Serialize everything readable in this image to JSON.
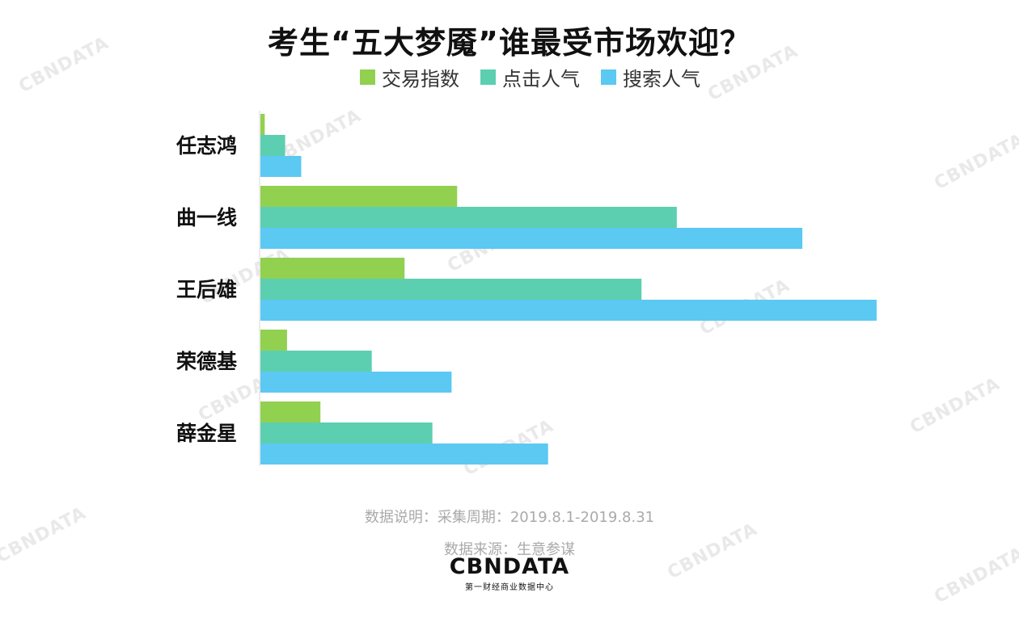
{
  "chart_data": {
    "type": "bar",
    "orientation": "horizontal",
    "title": "考生“五大梦魇”谁最受市场欢迎？",
    "categories": [
      "任志鸿",
      "曲一线",
      "王后雄",
      "荣德基",
      "薛金星"
    ],
    "series": [
      {
        "name": "交易指数",
        "color": "#92d050",
        "values": [
          0.7,
          31.8,
          23.3,
          4.3,
          9.7
        ]
      },
      {
        "name": "点击人气",
        "color": "#5ccfb0",
        "values": [
          4.0,
          67.3,
          61.6,
          18.0,
          27.8
        ]
      },
      {
        "name": "搜索人气",
        "color": "#5bc9f2",
        "values": [
          6.6,
          87.6,
          99.6,
          30.9,
          46.5
        ]
      }
    ],
    "xlim": [
      0,
      100
    ],
    "grid": false,
    "legend_position": "top"
  },
  "footer": {
    "note": "数据说明：采集周期：2019.8.1-2019.8.31",
    "source": "数据来源：生意参谋"
  },
  "logo": {
    "main": "CBNDATA",
    "sub": "第一财经商业数据中心"
  }
}
